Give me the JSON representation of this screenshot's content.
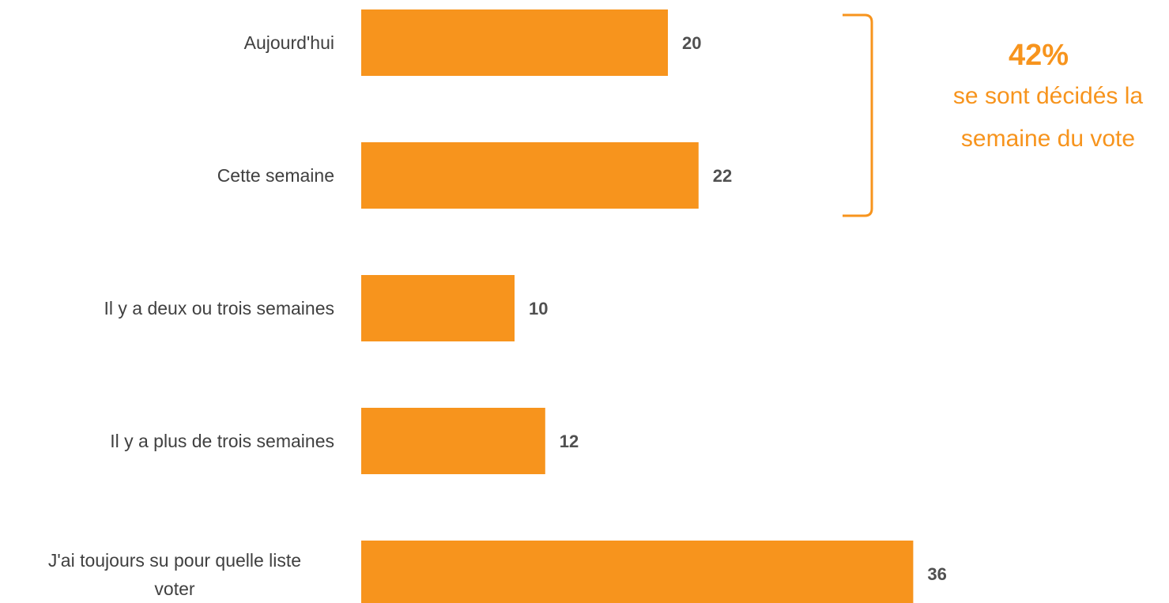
{
  "chart_data": {
    "type": "bar",
    "orientation": "horizontal",
    "categories": [
      "Aujourd'hui",
      "Cette semaine",
      "Il y a deux ou trois semaines",
      "Il y a plus de trois semaines",
      "J'ai toujours su pour quelle liste voter"
    ],
    "values": [
      20,
      22,
      10,
      12,
      36
    ],
    "data_labels": [
      "20",
      "22",
      "10",
      "12",
      "36"
    ],
    "xlim": [
      0,
      36
    ],
    "grid": false,
    "axis_visible": false,
    "bar_color": "#F7941D",
    "callout": {
      "value": "42%",
      "text_line1": "se sont décidés la",
      "text_line2": "semaine du vote",
      "color": "#F7941D",
      "spans_categories": [
        "Aujourd'hui",
        "Cette semaine"
      ]
    }
  }
}
